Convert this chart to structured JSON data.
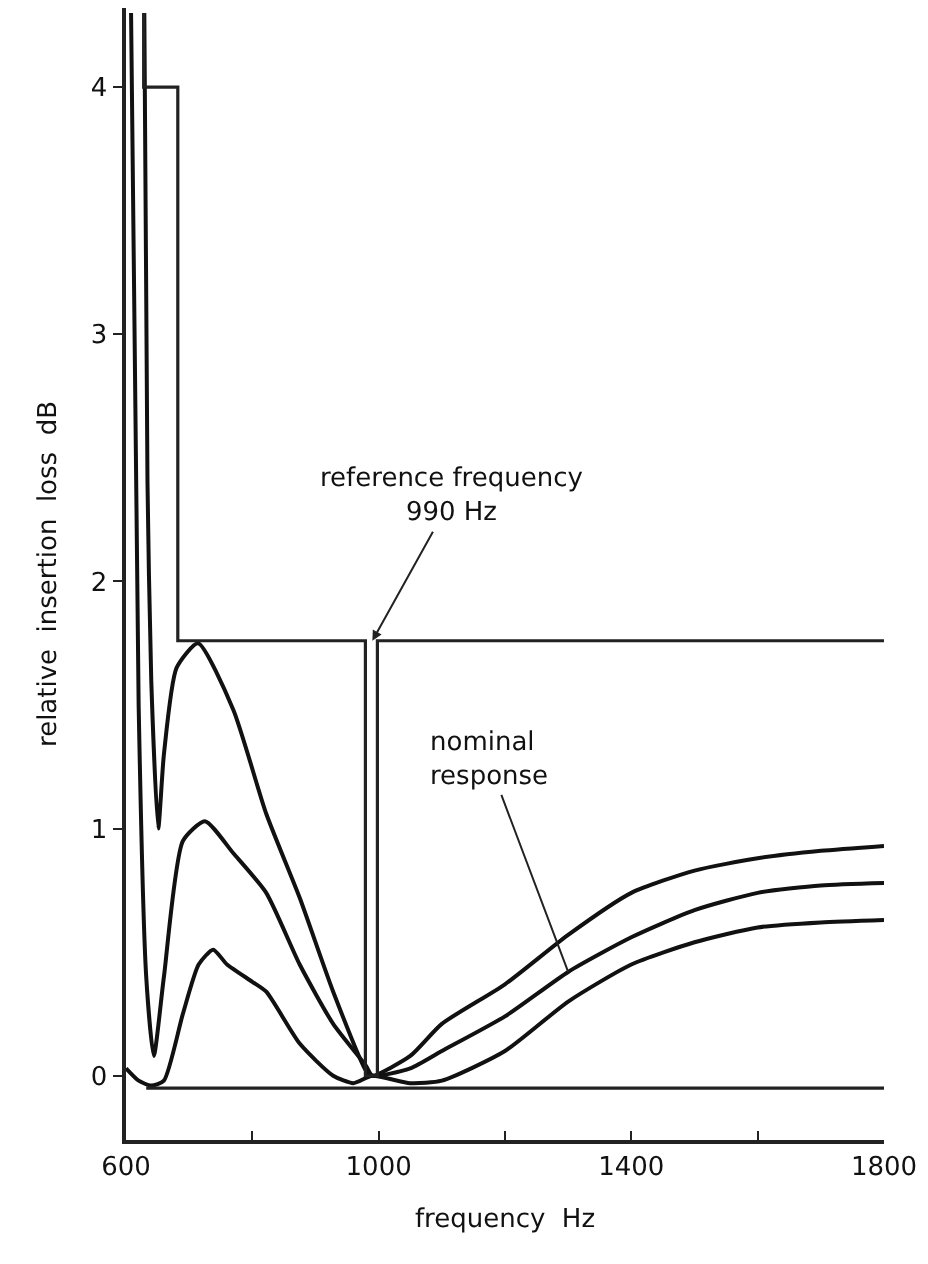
{
  "chart_data": {
    "type": "line",
    "xlabel": "frequency  Hz",
    "ylabel": "relative  insertion  loss  dB",
    "xlim": [
      600,
      1800
    ],
    "ylim": [
      -0.26,
      4.32
    ],
    "xticks": [
      600,
      {
        "value": 800,
        "label": null
      },
      1000,
      {
        "value": 1200,
        "label": null
      },
      1400,
      {
        "value": 1600,
        "label": null
      },
      1800
    ],
    "yticks": [
      0,
      1,
      2,
      3,
      4
    ],
    "marker": "none",
    "line_style": "solid",
    "series": [
      {
        "color": "#111111",
        "x": [
          629,
          634,
          640,
          651,
          660,
          680,
          714,
          770,
          822,
          875,
          928,
          980,
          990,
          1050,
          1100,
          1200,
          1300,
          1400,
          1500,
          1600,
          1700,
          1800
        ],
        "values": [
          4.3,
          2.4,
          1.6,
          1.0,
          1.3,
          1.65,
          1.75,
          1.48,
          1.06,
          0.72,
          0.34,
          0.02,
          0.0,
          0.08,
          0.21,
          0.37,
          0.57,
          0.74,
          0.83,
          0.88,
          0.91,
          0.93
        ]
      },
      {
        "color": "#111111",
        "x": [
          608,
          620,
          632,
          644,
          660,
          690,
          725,
          770,
          822,
          875,
          928,
          980,
          990,
          1050,
          1100,
          1200,
          1300,
          1400,
          1500,
          1600,
          1700,
          1800
        ],
        "values": [
          4.3,
          1.5,
          0.4,
          0.08,
          0.4,
          0.95,
          1.03,
          0.9,
          0.74,
          0.45,
          0.21,
          0.04,
          0.0,
          0.03,
          0.1,
          0.24,
          0.42,
          0.56,
          0.67,
          0.74,
          0.77,
          0.78
        ]
      },
      {
        "color": "#111111",
        "x": [
          600,
          620,
          640,
          660,
          690,
          715,
          738,
          760,
          800,
          822,
          875,
          928,
          960,
          990,
          1050,
          1100,
          1200,
          1300,
          1400,
          1500,
          1600,
          1700,
          1800
        ],
        "values": [
          0.03,
          -0.02,
          -0.04,
          -0.02,
          0.25,
          0.45,
          0.51,
          0.45,
          0.38,
          0.34,
          0.13,
          0.0,
          -0.03,
          0.0,
          -0.03,
          -0.02,
          0.1,
          0.3,
          0.45,
          0.54,
          0.6,
          0.62,
          0.63
        ]
      },
      {
        "color": "#222222",
        "x": [
          628,
          628,
          682,
          682,
          979,
          979,
          998,
          998,
          1800
        ],
        "values": [
          4.3,
          4,
          4,
          1.76,
          1.76,
          0,
          0,
          1.76,
          1.76
        ]
      },
      {
        "color": "#222222",
        "x": [
          632,
          1800
        ],
        "values": [
          -0.05,
          -0.05
        ]
      }
    ],
    "annotations": [
      {
        "text": "reference frequency\n990 Hz",
        "x": 990,
        "y": 1.76
      },
      {
        "text": "nominal\nresponse",
        "x": 1300,
        "y": 0.42
      }
    ]
  }
}
